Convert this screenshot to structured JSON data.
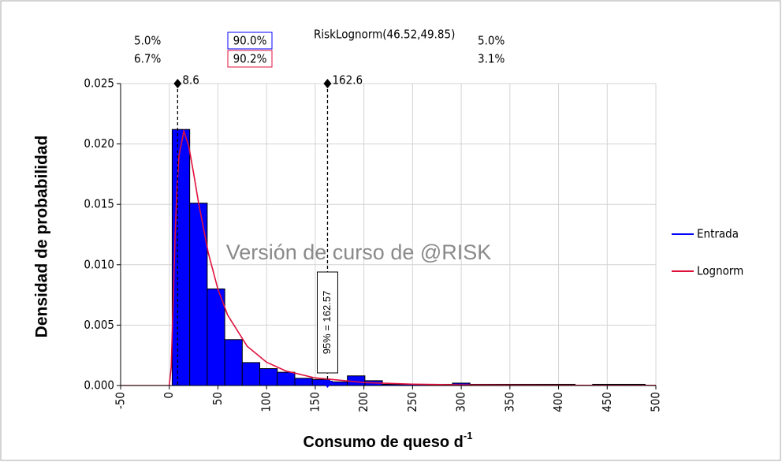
{
  "chart_data": {
    "type": "histogram",
    "title": "RiskLognorm(46.52,49.85)",
    "x_label": "Consumo de queso d",
    "x_label_sup": "-1",
    "y_label": "Densidad de probabilidad",
    "watermark": "Versión de curso de @RISK",
    "annotation": "95% = 162.57",
    "stats": {
      "left": [
        "5.0%",
        "6.7%"
      ],
      "middle": [
        "90.0%",
        "90.2%"
      ],
      "right": [
        "5.0%",
        "3.1%"
      ]
    },
    "markers": [
      8.6,
      162.6
    ],
    "bins": [
      3,
      21,
      39,
      57,
      75,
      93,
      111,
      129,
      147,
      165,
      183,
      201,
      219,
      237,
      255,
      273,
      291,
      309,
      327,
      345,
      363,
      381,
      399,
      417,
      435,
      453,
      471,
      489
    ],
    "series": [
      {
        "name": "Entrada",
        "type": "histogram",
        "color": "#0000ff",
        "values": [
          0.0212,
          0.0151,
          0.008,
          0.0038,
          0.0019,
          0.0014,
          0.0011,
          0.0006,
          0.0005,
          0.0003,
          0.0008,
          0.0004,
          0.0001,
          0.0001,
          0.0001,
          0.0001,
          0.0002,
          0.0001,
          0.0001,
          0.0001,
          0.0001,
          0.0001,
          0.0001,
          0,
          0.0001,
          0.0001,
          0.0001
        ]
      },
      {
        "name": "Lognorm",
        "type": "line",
        "color": "#e0103c",
        "x": [
          -50,
          0,
          2,
          4,
          6,
          8,
          10,
          15,
          20,
          25,
          30,
          40,
          50,
          60,
          80,
          100,
          120,
          150,
          200,
          250,
          300,
          400,
          500
        ],
        "values": [
          0,
          0,
          0.00154,
          0.0069,
          0.0124,
          0.01647,
          0.01907,
          0.02106,
          0.01984,
          0.01758,
          0.01517,
          0.01101,
          0.00797,
          0.00583,
          0.00326,
          0.00193,
          0.0012,
          0.00063,
          0.00025,
          0.00011,
          5.6e-05,
          2e-05,
          1e-05
        ]
      }
    ],
    "xlim": [
      -50,
      500
    ],
    "xticks": [
      -50,
      0,
      50,
      100,
      150,
      200,
      250,
      300,
      350,
      400,
      450,
      500
    ],
    "ylim": [
      0,
      0.025
    ],
    "yticks": [
      {
        "value": 0,
        "label": "0.000"
      },
      {
        "value": 0.005,
        "label": "0.005"
      },
      {
        "value": 0.01,
        "label": "0.010"
      },
      {
        "value": 0.015,
        "label": "0.015"
      },
      {
        "value": 0.02,
        "label": "0.020"
      },
      {
        "value": 0.025,
        "label": "0.025"
      }
    ],
    "grid": true,
    "legend": "right"
  }
}
